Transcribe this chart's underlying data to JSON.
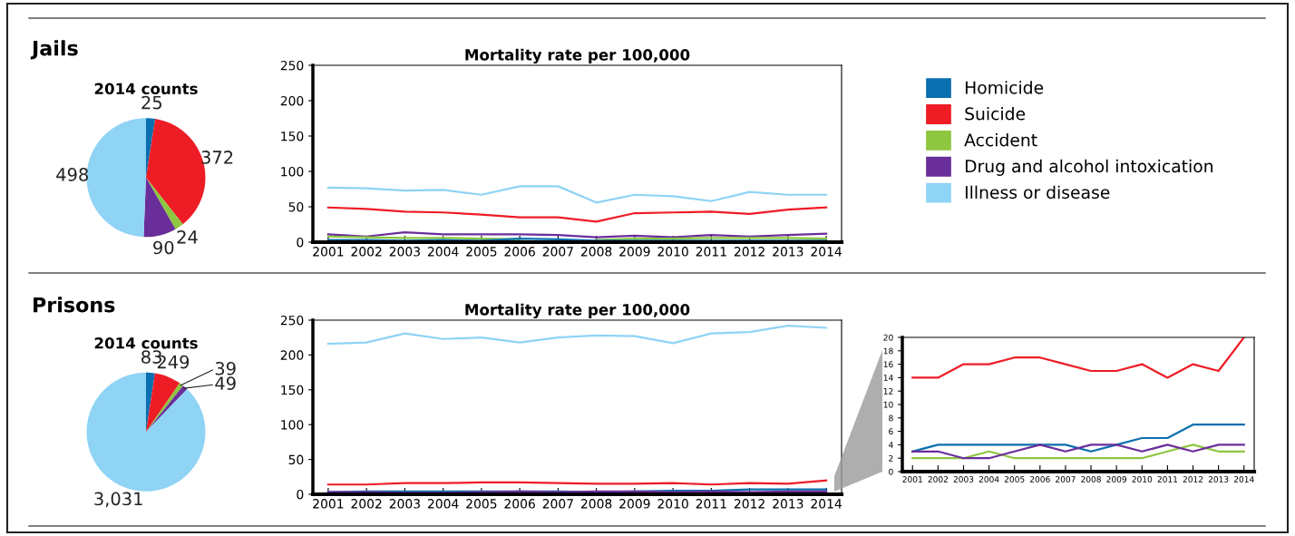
{
  "chart_data": [
    {
      "type": "pie",
      "title": "2014 counts",
      "annotations": [
        "Jails"
      ],
      "legend": "right",
      "categories": [
        "Homicide",
        "Suicide",
        "Accident",
        "Drug and alcohol intoxication",
        "Illness or disease"
      ],
      "values": [
        25,
        372,
        24,
        90,
        498
      ],
      "value_labels": [
        "25",
        "372",
        "24",
        "90",
        "498"
      ],
      "colors": [
        "#0a6fae",
        "#ee1c25",
        "#8dc63f",
        "#6a2e9a",
        "#8fd3f5"
      ]
    },
    {
      "type": "line",
      "title": "Mortality rate per 100,000",
      "categories": [
        "2001",
        "2002",
        "2003",
        "2004",
        "2005",
        "2006",
        "2007",
        "2008",
        "2009",
        "2010",
        "2011",
        "2012",
        "2013",
        "2014"
      ],
      "ylim": [
        0,
        250
      ],
      "yticks": [
        0,
        50,
        100,
        150,
        200,
        250
      ],
      "series": [
        {
          "color": "#8fd3f5",
          "values": [
            77,
            76,
            73,
            74,
            67,
            79,
            79,
            56,
            67,
            65,
            58,
            71,
            67,
            67
          ]
        },
        {
          "color": "#ee1c25",
          "values": [
            49,
            47,
            43,
            42,
            39,
            35,
            35,
            29,
            41,
            42,
            43,
            40,
            46,
            49
          ]
        },
        {
          "color": "#6a2e9a",
          "values": [
            11,
            8,
            14,
            11,
            11,
            11,
            10,
            7,
            9,
            7,
            10,
            8,
            10,
            12
          ]
        },
        {
          "color": "#8dc63f",
          "values": [
            8,
            7,
            6,
            6,
            5,
            4,
            null,
            3,
            5,
            5,
            6,
            6,
            6,
            5
          ]
        },
        {
          "color": "#0a6fae",
          "values": [
            3,
            3,
            2,
            3,
            2,
            5,
            4,
            2,
            2,
            2,
            2,
            2,
            2,
            2
          ]
        }
      ]
    },
    {
      "type": "pie",
      "title": "2014 counts",
      "annotations": [
        "Prisons"
      ],
      "categories": [
        null,
        null,
        null,
        null,
        null
      ],
      "values": [
        83,
        249,
        39,
        49,
        3031
      ],
      "value_labels": [
        "83",
        "249",
        "39",
        "49",
        "3,031"
      ],
      "colors": [
        "#0a6fae",
        "#ee1c25",
        "#8dc63f",
        "#6a2e9a",
        "#8fd3f5"
      ]
    },
    {
      "type": "line",
      "title": "Mortality rate per 100,000",
      "categories": [
        "2001",
        "2002",
        "2003",
        "2004",
        "2005",
        "2006",
        "2007",
        "2008",
        "2009",
        "2010",
        "2011",
        "2012",
        "2013",
        "2014"
      ],
      "ylim": [
        0,
        250
      ],
      "yticks": [
        0,
        50,
        100,
        150,
        200,
        250
      ],
      "series": [
        {
          "color": "#8fd3f5",
          "values": [
            216,
            218,
            231,
            223,
            225,
            218,
            225,
            228,
            227,
            217,
            231,
            233,
            242,
            239
          ]
        },
        {
          "color": "#ee1c25",
          "values": [
            14,
            14,
            16,
            16,
            17,
            17,
            16,
            15,
            15,
            16,
            14,
            16,
            15,
            20
          ]
        },
        {
          "color": "#0a6fae",
          "values": [
            3,
            4,
            4,
            4,
            4,
            4,
            4,
            3,
            4,
            5,
            5,
            7,
            7,
            7
          ]
        },
        {
          "color": "#8dc63f",
          "values": [
            null,
            null,
            null,
            null,
            null,
            null,
            null,
            null,
            null,
            null,
            null,
            null,
            null,
            null
          ]
        },
        {
          "color": "#6a2e9a",
          "values": [
            3,
            3,
            2,
            2,
            3,
            4,
            3,
            4,
            4,
            3,
            4,
            3,
            4,
            4
          ]
        }
      ]
    },
    {
      "type": "line",
      "categories": [
        "2001",
        "2002",
        "2003",
        "2004",
        "2005",
        "2006",
        "2007",
        "2008",
        "2009",
        "2010",
        "2011",
        "2012",
        "2013",
        "2014"
      ],
      "ylim": [
        0,
        20
      ],
      "yticks": [
        0,
        2,
        4,
        6,
        8,
        10,
        12,
        14,
        16,
        18,
        20
      ],
      "series": [
        {
          "color": "#ee1c25",
          "values": [
            14,
            14,
            16,
            16,
            17,
            17,
            16,
            15,
            15,
            16,
            14,
            16,
            15,
            20
          ]
        },
        {
          "color": "#0a6fae",
          "values": [
            3,
            4,
            4,
            4,
            4,
            4,
            4,
            3,
            4,
            5,
            5,
            7,
            7,
            7
          ]
        },
        {
          "color": "#8dc63f",
          "values": [
            2,
            2,
            2,
            3,
            2,
            2,
            2,
            2,
            2,
            2,
            3,
            4,
            3,
            3
          ]
        },
        {
          "color": "#6a2e9a",
          "values": [
            3,
            3,
            2,
            2,
            3,
            4,
            3,
            4,
            4,
            3,
            4,
            3,
            4,
            4
          ]
        }
      ]
    }
  ]
}
